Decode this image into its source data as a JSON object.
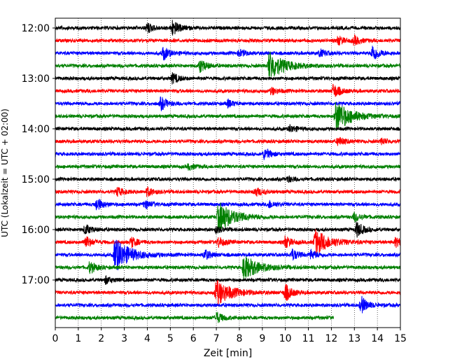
{
  "chart_data": {
    "type": "line",
    "title": "",
    "xlabel": "Zeit  [min]",
    "ylabel": "UTC (Lokalzeit = UTC + 02:00)",
    "xlim": [
      0,
      15
    ],
    "xticks": [
      0,
      1,
      2,
      3,
      4,
      5,
      6,
      7,
      8,
      9,
      10,
      11,
      12,
      13,
      14,
      15
    ],
    "yticks": [
      "12:00",
      "13:00",
      "14:00",
      "15:00",
      "16:00",
      "17:00"
    ],
    "grid": "vertical dotted",
    "start_time": "12:00",
    "line_interval_minutes": 15,
    "color_cycle": [
      "#000000",
      "#ff0000",
      "#0000ff",
      "#008000"
    ],
    "series": [
      {
        "time": "12:00",
        "color": "#000000",
        "events": [
          {
            "t": 4.0,
            "amp": 7
          },
          {
            "t": 5.1,
            "amp": 11
          }
        ]
      },
      {
        "time": "12:15",
        "color": "#ff0000",
        "events": [
          {
            "t": 12.3,
            "amp": 6
          },
          {
            "t": 13.0,
            "amp": 6
          }
        ]
      },
      {
        "time": "12:30",
        "color": "#0000ff",
        "events": [
          {
            "t": 4.7,
            "amp": 9
          },
          {
            "t": 8.0,
            "amp": 5
          },
          {
            "t": 11.5,
            "amp": 5
          },
          {
            "t": 13.8,
            "amp": 12
          }
        ]
      },
      {
        "time": "12:45",
        "color": "#008000",
        "events": [
          {
            "t": 6.3,
            "amp": 9
          },
          {
            "t": 9.3,
            "amp": 20
          }
        ]
      },
      {
        "time": "13:00",
        "color": "#000000",
        "events": [
          {
            "t": 5.1,
            "amp": 7
          }
        ]
      },
      {
        "time": "13:15",
        "color": "#ff0000",
        "events": [
          {
            "t": 9.4,
            "amp": 5
          },
          {
            "t": 12.1,
            "amp": 10
          }
        ]
      },
      {
        "time": "13:30",
        "color": "#0000ff",
        "events": [
          {
            "t": 4.6,
            "amp": 9
          },
          {
            "t": 7.5,
            "amp": 5
          }
        ]
      },
      {
        "time": "13:45",
        "color": "#008000",
        "events": [
          {
            "t": 12.2,
            "amp": 22
          }
        ]
      },
      {
        "time": "14:00",
        "color": "#000000",
        "events": [
          {
            "t": 10.2,
            "amp": 5
          }
        ]
      },
      {
        "time": "14:15",
        "color": "#ff0000",
        "events": [
          {
            "t": 12.3,
            "amp": 6
          },
          {
            "t": 14.2,
            "amp": 4
          }
        ]
      },
      {
        "time": "14:30",
        "color": "#0000ff",
        "events": [
          {
            "t": 9.1,
            "amp": 8
          }
        ]
      },
      {
        "time": "14:45",
        "color": "#008000",
        "events": [
          {
            "t": 5.8,
            "amp": 4
          }
        ]
      },
      {
        "time": "15:00",
        "color": "#000000",
        "events": [
          {
            "t": 10.1,
            "amp": 4
          }
        ]
      },
      {
        "time": "15:15",
        "color": "#ff0000",
        "events": [
          {
            "t": 2.7,
            "amp": 6
          },
          {
            "t": 4.0,
            "amp": 6
          },
          {
            "t": 8.7,
            "amp": 6
          }
        ]
      },
      {
        "time": "15:30",
        "color": "#0000ff",
        "events": [
          {
            "t": 1.8,
            "amp": 9
          },
          {
            "t": 3.9,
            "amp": 6
          },
          {
            "t": 9.3,
            "amp": 5
          }
        ]
      },
      {
        "time": "15:45",
        "color": "#008000",
        "events": [
          {
            "t": 7.1,
            "amp": 22
          },
          {
            "t": 13.0,
            "amp": 6
          }
        ]
      },
      {
        "time": "16:00",
        "color": "#000000",
        "events": [
          {
            "t": 1.3,
            "amp": 7
          },
          {
            "t": 7.0,
            "amp": 4
          },
          {
            "t": 13.1,
            "amp": 11
          }
        ]
      },
      {
        "time": "16:15",
        "color": "#ff0000",
        "events": [
          {
            "t": 1.3,
            "amp": 9
          },
          {
            "t": 3.3,
            "amp": 7
          },
          {
            "t": 7.1,
            "amp": 7
          },
          {
            "t": 10.0,
            "amp": 8
          },
          {
            "t": 11.3,
            "amp": 17
          },
          {
            "t": 14.8,
            "amp": 6
          }
        ]
      },
      {
        "time": "16:30",
        "color": "#0000ff",
        "events": [
          {
            "t": 2.6,
            "amp": 24
          },
          {
            "t": 6.5,
            "amp": 7
          },
          {
            "t": 10.3,
            "amp": 8
          },
          {
            "t": 11.1,
            "amp": 6
          }
        ]
      },
      {
        "time": "16:45",
        "color": "#008000",
        "events": [
          {
            "t": 1.5,
            "amp": 8
          },
          {
            "t": 8.2,
            "amp": 17
          }
        ]
      },
      {
        "time": "17:00",
        "color": "#000000",
        "events": [
          {
            "t": 2.2,
            "amp": 5
          }
        ]
      },
      {
        "time": "17:15",
        "color": "#ff0000",
        "events": [
          {
            "t": 7.0,
            "amp": 18
          },
          {
            "t": 10.0,
            "amp": 12
          }
        ]
      },
      {
        "time": "17:30",
        "color": "#0000ff",
        "events": [
          {
            "t": 13.3,
            "amp": 12
          }
        ]
      },
      {
        "time": "17:45",
        "color": "#008000",
        "end": 12.1,
        "events": [
          {
            "t": 7.0,
            "amp": 8
          }
        ]
      }
    ]
  }
}
